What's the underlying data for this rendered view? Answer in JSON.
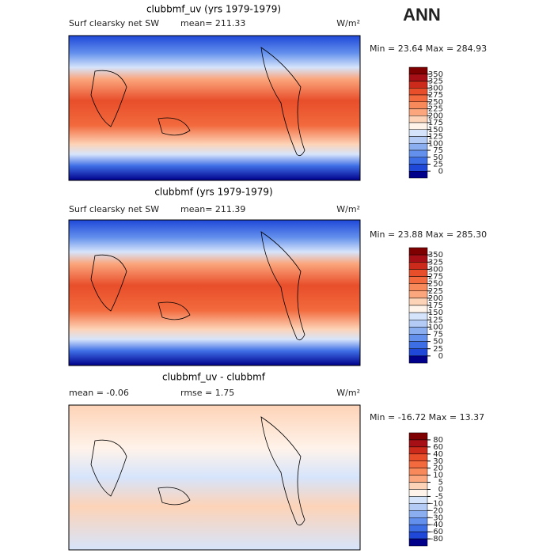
{
  "header": {
    "title": "ANN"
  },
  "panels": [
    {
      "title": "clubbmf_uv (yrs 1979-1979)",
      "subtitle": "Surf clearsky net SW",
      "mean": "mean= 211.33",
      "units": "W/m²",
      "minmax": "Min =  23.64 Max = 284.93",
      "colorbar": {
        "ticks": [
          350,
          325,
          300,
          275,
          250,
          225,
          200,
          175,
          150,
          125,
          100,
          75,
          50,
          25,
          0
        ],
        "colors": [
          "#7f0000",
          "#a50f15",
          "#cc2a1a",
          "#e84e2a",
          "#f26a3d",
          "#f7895a",
          "#fba67d",
          "#fdd3b7",
          "#fff3ea",
          "#d6e4fb",
          "#b3cbf5",
          "#8aaef0",
          "#6390ec",
          "#3e6ee6",
          "#1f48d9",
          "#00008b"
        ]
      }
    },
    {
      "title": "clubbmf (yrs 1979-1979)",
      "subtitle": "Surf clearsky net SW",
      "mean": "mean= 211.39",
      "units": "W/m²",
      "minmax": "Min =  23.88 Max = 285.30",
      "colorbar": {
        "ticks": [
          350,
          325,
          300,
          275,
          250,
          225,
          200,
          175,
          150,
          125,
          100,
          75,
          50,
          25,
          0
        ],
        "colors": [
          "#7f0000",
          "#a50f15",
          "#cc2a1a",
          "#e84e2a",
          "#f26a3d",
          "#f7895a",
          "#fba67d",
          "#fdd3b7",
          "#fff3ea",
          "#d6e4fb",
          "#b3cbf5",
          "#8aaef0",
          "#6390ec",
          "#3e6ee6",
          "#1f48d9",
          "#00008b"
        ]
      }
    },
    {
      "title": "clubbmf_uv - clubbmf",
      "subtitle": "mean =  -0.06",
      "mean": "rmse =   1.75",
      "units": "W/m²",
      "minmax": "Min = -16.72 Max =  13.37",
      "colorbar": {
        "ticks": [
          80,
          60,
          40,
          30,
          20,
          10,
          5,
          0,
          -5,
          -10,
          -20,
          -30,
          -40,
          -60,
          -80
        ],
        "colors": [
          "#7f0000",
          "#a50f15",
          "#cc2a1a",
          "#e84e2a",
          "#f26a3d",
          "#f7895a",
          "#fba67d",
          "#fdd3b7",
          "#fff3ea",
          "#d6e4fb",
          "#b3cbf5",
          "#8aaef0",
          "#6390ec",
          "#3e6ee6",
          "#1f48d9",
          "#00008b"
        ]
      }
    }
  ]
}
